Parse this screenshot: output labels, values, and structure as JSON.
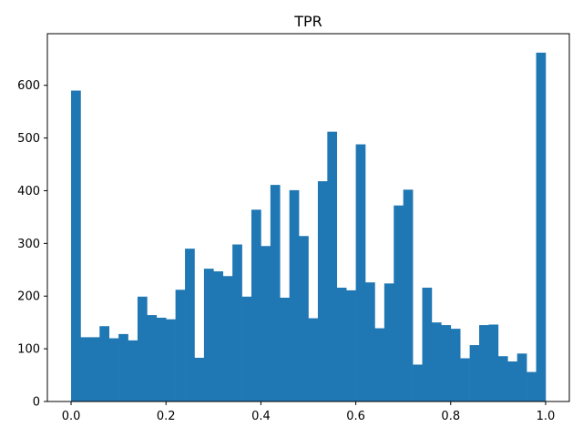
{
  "chart_data": {
    "type": "bar",
    "title": "TPR",
    "xlabel": "",
    "ylabel": "",
    "xlim": [
      -0.05,
      1.05
    ],
    "ylim": [
      0,
      698
    ],
    "bin_width": 0.02,
    "bin_start": 0.0,
    "values": [
      590,
      122,
      122,
      143,
      120,
      128,
      116,
      199,
      164,
      159,
      156,
      212,
      290,
      83,
      252,
      247,
      238,
      298,
      199,
      364,
      295,
      411,
      197,
      401,
      314,
      158,
      418,
      512,
      216,
      211,
      488,
      226,
      139,
      224,
      372,
      402,
      70,
      216,
      150,
      145,
      138,
      82,
      107,
      145,
      146,
      86,
      76,
      91,
      56,
      662
    ],
    "xticks": [
      0.0,
      0.2,
      0.4,
      0.6,
      0.8,
      1.0
    ],
    "xtick_labels": [
      "0.0",
      "0.2",
      "0.4",
      "0.6",
      "0.8",
      "1.0"
    ],
    "yticks": [
      0,
      100,
      200,
      300,
      400,
      500,
      600
    ],
    "ytick_labels": [
      "0",
      "100",
      "200",
      "300",
      "400",
      "500",
      "600"
    ],
    "bar_color": "#1f77b4",
    "grid": false,
    "legend": false
  }
}
